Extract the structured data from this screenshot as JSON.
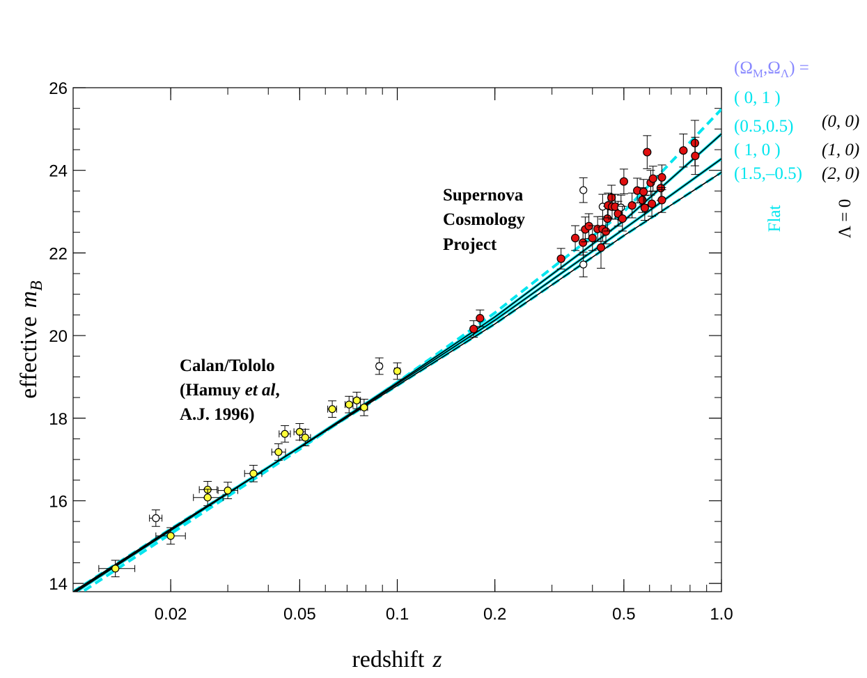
{
  "colors": {
    "cyan": "#00e5ee",
    "legend_title": "#8888ff",
    "point_yellow": "#ffff3a",
    "point_red": "#e01010",
    "black": "#000000"
  },
  "chart_data": {
    "type": "scatter",
    "title": "",
    "xlabel": "redshift",
    "xlabel_var": "z",
    "ylabel": "effective",
    "ylabel_var": "m",
    "ylabel_sub": "B",
    "xscale": "log",
    "xlim": [
      0.01,
      1.0
    ],
    "ylim": [
      13.8,
      26.0
    ],
    "x_ticks": [
      {
        "value": 0.02,
        "label": "0.02"
      },
      {
        "value": 0.05,
        "label": "0.05"
      },
      {
        "value": 0.1,
        "label": "0.1"
      },
      {
        "value": 0.2,
        "label": "0.2"
      },
      {
        "value": 0.5,
        "label": "0.5"
      },
      {
        "value": 1.0,
        "label": "1.0"
      }
    ],
    "y_ticks": [
      {
        "value": 14,
        "label": "14"
      },
      {
        "value": 16,
        "label": "16"
      },
      {
        "value": 18,
        "label": "18"
      },
      {
        "value": 20,
        "label": "20"
      },
      {
        "value": 22,
        "label": "22"
      },
      {
        "value": 24,
        "label": "24"
      },
      {
        "value": 26,
        "label": "26"
      }
    ],
    "annotations": [
      {
        "id": "calan",
        "lines": [
          [
            {
              "t": "Calan/Tololo",
              "i": false
            }
          ],
          [
            {
              "t": "(Hamuy ",
              "i": false
            },
            {
              "t": "et al",
              "i": true
            },
            {
              "t": ",",
              "i": false
            }
          ],
          [
            {
              "t": "A.J. 1996)",
              "i": false
            }
          ]
        ]
      },
      {
        "id": "scp",
        "lines": [
          [
            {
              "t": "Supernova",
              "i": false
            }
          ],
          [
            {
              "t": "Cosmology",
              "i": false
            }
          ],
          [
            {
              "t": "Project",
              "i": false
            }
          ]
        ]
      }
    ],
    "legend": {
      "title_omega": "Ω",
      "title_m": "M",
      "title_l": "Λ",
      "title_eq": "=",
      "flat_label": "Flat",
      "lambda_zero_label": "Λ = 0",
      "flat_entries": [
        "( 0,   1 )",
        "(0.5,0.5)",
        "( 1,    0 )",
        "(1.5,–0.5)"
      ],
      "lambda_zero_entries": [
        "(0, 0)",
        "(1, 0)",
        "(2, 0)"
      ]
    },
    "series": [
      {
        "name": "Flat (0, 1)",
        "style": "dashed",
        "color": "cyan",
        "x": [
          0.01,
          0.02,
          0.05,
          0.1,
          0.2,
          0.5,
          1.0
        ],
        "y": [
          13.65,
          15.2,
          17.25,
          18.87,
          20.55,
          23.0,
          25.48
        ]
      },
      {
        "name": "Flat (0.5, 0.5)",
        "style": "solid",
        "color": "cyan",
        "x": [
          0.01,
          0.02,
          0.05,
          0.1,
          0.2,
          0.5,
          1.0
        ],
        "y": [
          13.75,
          15.28,
          17.3,
          18.86,
          20.45,
          22.78,
          24.88
        ]
      },
      {
        "name": "Flat (1, 0)",
        "style": "solid",
        "color": "cyan",
        "x": [
          0.01,
          0.02,
          0.05,
          0.1,
          0.2,
          0.5,
          1.0
        ],
        "y": [
          13.78,
          15.3,
          17.3,
          18.83,
          20.37,
          22.58,
          24.28
        ]
      },
      {
        "name": "Flat (1.5, -0.5)",
        "style": "dashed",
        "color": "cyan",
        "x": [
          0.01,
          0.02,
          0.05,
          0.1,
          0.2,
          0.5,
          1.0
        ],
        "y": [
          13.8,
          15.32,
          17.29,
          18.79,
          20.28,
          22.42,
          23.95
        ]
      },
      {
        "name": "Lambda=0 (0, 0)",
        "style": "solid",
        "color": "black",
        "x": [
          0.01,
          0.02,
          0.05,
          0.1,
          0.2,
          0.5,
          1.0
        ],
        "y": [
          13.75,
          15.28,
          17.3,
          18.86,
          20.45,
          22.78,
          24.88
        ]
      },
      {
        "name": "Lambda=0 (1, 0)",
        "style": "solid",
        "color": "black",
        "x": [
          0.01,
          0.02,
          0.05,
          0.1,
          0.2,
          0.5,
          1.0
        ],
        "y": [
          13.78,
          15.3,
          17.3,
          18.83,
          20.37,
          22.58,
          24.28
        ]
      },
      {
        "name": "Lambda=0 (2, 0)",
        "style": "solid",
        "color": "black",
        "x": [
          0.01,
          0.02,
          0.05,
          0.1,
          0.2,
          0.5,
          1.0
        ],
        "y": [
          13.8,
          15.32,
          17.29,
          18.79,
          20.28,
          22.42,
          23.95
        ]
      }
    ],
    "points": [
      {
        "group": "calan",
        "fill": "yellow",
        "x": 0.0135,
        "y": 14.36,
        "xerr": [
          0.012,
          0.0155
        ],
        "yerr": 0.2
      },
      {
        "group": "calan",
        "fill": "open",
        "x": 0.018,
        "y": 15.58,
        "xerr": [
          0.0172,
          0.0188
        ],
        "yerr": 0.2
      },
      {
        "group": "calan",
        "fill": "yellow",
        "x": 0.02,
        "y": 15.15,
        "xerr": [
          0.018,
          0.0222
        ],
        "yerr": 0.2
      },
      {
        "group": "calan",
        "fill": "yellow",
        "x": 0.026,
        "y": 16.27,
        "xerr": [
          0.0245,
          0.0278
        ],
        "yerr": 0.2
      },
      {
        "group": "calan",
        "fill": "yellow",
        "x": 0.026,
        "y": 16.08,
        "xerr": [
          0.0235,
          0.029
        ],
        "yerr": 0.2
      },
      {
        "group": "calan",
        "fill": "yellow",
        "x": 0.03,
        "y": 16.25,
        "xerr": [
          0.028,
          0.0322
        ],
        "yerr": 0.2
      },
      {
        "group": "calan",
        "fill": "yellow",
        "x": 0.036,
        "y": 16.66,
        "xerr": [
          0.0338,
          0.0382
        ],
        "yerr": 0.2
      },
      {
        "group": "calan",
        "fill": "yellow",
        "x": 0.043,
        "y": 17.18,
        "xerr": [
          0.041,
          0.0452
        ],
        "yerr": 0.2
      },
      {
        "group": "calan",
        "fill": "yellow",
        "x": 0.045,
        "y": 17.62,
        "xerr": [
          0.0432,
          0.0468
        ],
        "yerr": 0.2
      },
      {
        "group": "calan",
        "fill": "yellow",
        "x": 0.05,
        "y": 17.67,
        "xerr": [
          0.048,
          0.052
        ],
        "yerr": 0.2
      },
      {
        "group": "calan",
        "fill": "yellow",
        "x": 0.052,
        "y": 17.53,
        "xerr": [
          0.05,
          0.054
        ],
        "yerr": 0.2
      },
      {
        "group": "calan",
        "fill": "yellow",
        "x": 0.063,
        "y": 18.22,
        "xerr": [
          0.061,
          0.065
        ],
        "yerr": 0.2
      },
      {
        "group": "calan",
        "fill": "yellow",
        "x": 0.071,
        "y": 18.33,
        "xerr": [
          0.069,
          0.073
        ],
        "yerr": 0.2
      },
      {
        "group": "calan",
        "fill": "yellow",
        "x": 0.075,
        "y": 18.43,
        "xerr": [
          0.073,
          0.077
        ],
        "yerr": 0.2
      },
      {
        "group": "calan",
        "fill": "yellow",
        "x": 0.079,
        "y": 18.26,
        "xerr": [
          0.077,
          0.081
        ],
        "yerr": 0.2
      },
      {
        "group": "calan",
        "fill": "open",
        "x": 0.088,
        "y": 19.26,
        "xerr": [
          0.0865,
          0.0895
        ],
        "yerr": 0.2
      },
      {
        "group": "calan",
        "fill": "yellow",
        "x": 0.1,
        "y": 19.14,
        "xerr": [
          0.098,
          0.102
        ],
        "yerr": 0.2
      },
      {
        "group": "scp",
        "fill": "red",
        "x": 0.172,
        "y": 20.16,
        "yerr": 0.2
      },
      {
        "group": "scp",
        "fill": "red",
        "x": 0.18,
        "y": 20.42,
        "yerr": 0.2
      },
      {
        "group": "scp",
        "fill": "red",
        "x": 0.32,
        "y": 21.86,
        "yerr": 0.25
      },
      {
        "group": "scp",
        "fill": "red",
        "x": 0.354,
        "y": 22.36,
        "yerr": 0.3
      },
      {
        "group": "scp",
        "fill": "open",
        "x": 0.375,
        "y": 23.52,
        "yerr": 0.3
      },
      {
        "group": "scp",
        "fill": "open",
        "x": 0.375,
        "y": 21.72,
        "yerr": 0.3
      },
      {
        "group": "scp",
        "fill": "red",
        "x": 0.374,
        "y": 22.25,
        "yerr": 0.3
      },
      {
        "group": "scp",
        "fill": "red",
        "x": 0.38,
        "y": 22.57,
        "yerr": 0.3
      },
      {
        "group": "scp",
        "fill": "red",
        "x": 0.39,
        "y": 22.65,
        "yerr": 0.3
      },
      {
        "group": "scp",
        "fill": "red",
        "x": 0.4,
        "y": 22.36,
        "yerr": 0.3
      },
      {
        "group": "scp",
        "fill": "red",
        "x": 0.415,
        "y": 22.58,
        "yerr": 0.3
      },
      {
        "group": "scp",
        "fill": "red",
        "x": 0.425,
        "y": 22.13,
        "yerr": 0.5
      },
      {
        "group": "scp",
        "fill": "red",
        "x": 0.43,
        "y": 22.58,
        "yerr": 0.3
      },
      {
        "group": "scp",
        "fill": "open",
        "x": 0.43,
        "y": 23.12,
        "yerr": 0.3
      },
      {
        "group": "scp",
        "fill": "red",
        "x": 0.44,
        "y": 22.52,
        "yerr": 0.3
      },
      {
        "group": "scp",
        "fill": "red",
        "x": 0.445,
        "y": 22.83,
        "yerr": 0.3
      },
      {
        "group": "scp",
        "fill": "red",
        "x": 0.447,
        "y": 23.15,
        "yerr": 0.3
      },
      {
        "group": "scp",
        "fill": "red",
        "x": 0.458,
        "y": 23.34,
        "yerr": 0.3
      },
      {
        "group": "scp",
        "fill": "red",
        "x": 0.46,
        "y": 23.12,
        "yerr": 0.3
      },
      {
        "group": "scp",
        "fill": "red",
        "x": 0.47,
        "y": 23.12,
        "yerr": 0.3
      },
      {
        "group": "scp",
        "fill": "red",
        "x": 0.48,
        "y": 22.95,
        "yerr": 0.3
      },
      {
        "group": "scp",
        "fill": "open",
        "x": 0.49,
        "y": 23.1,
        "yerr": 0.3
      },
      {
        "group": "scp",
        "fill": "red",
        "x": 0.495,
        "y": 22.83,
        "yerr": 0.3
      },
      {
        "group": "scp",
        "fill": "red",
        "x": 0.5,
        "y": 23.73,
        "yerr": 0.3
      },
      {
        "group": "scp",
        "fill": "red",
        "x": 0.53,
        "y": 23.15,
        "yerr": 0.3
      },
      {
        "group": "scp",
        "fill": "red",
        "x": 0.55,
        "y": 23.51,
        "yerr": 0.3
      },
      {
        "group": "scp",
        "fill": "red",
        "x": 0.57,
        "y": 23.28,
        "yerr": 0.3
      },
      {
        "group": "scp",
        "fill": "red",
        "x": 0.575,
        "y": 23.48,
        "yerr": 0.3
      },
      {
        "group": "scp",
        "fill": "red",
        "x": 0.58,
        "y": 23.09,
        "yerr": 0.3
      },
      {
        "group": "scp",
        "fill": "red",
        "x": 0.59,
        "y": 24.44,
        "yerr": 0.4
      },
      {
        "group": "scp",
        "fill": "red",
        "x": 0.605,
        "y": 23.7,
        "yerr": 0.3
      },
      {
        "group": "scp",
        "fill": "red",
        "x": 0.61,
        "y": 23.19,
        "yerr": 0.3
      },
      {
        "group": "scp",
        "fill": "red",
        "x": 0.615,
        "y": 23.8,
        "yerr": 0.3
      },
      {
        "group": "scp",
        "fill": "red",
        "x": 0.65,
        "y": 23.57,
        "yerr": 0.3
      },
      {
        "group": "scp",
        "fill": "red",
        "x": 0.655,
        "y": 23.28,
        "yerr": 0.3
      },
      {
        "group": "scp",
        "fill": "red",
        "x": 0.655,
        "y": 23.83,
        "yerr": 0.3
      },
      {
        "group": "scp",
        "fill": "red",
        "x": 0.763,
        "y": 24.48,
        "yerr": 0.4
      },
      {
        "group": "scp",
        "fill": "red",
        "x": 0.828,
        "y": 24.66,
        "yerr": 0.55
      },
      {
        "group": "scp",
        "fill": "red",
        "x": 0.83,
        "y": 24.35,
        "yerr": 0.45
      }
    ]
  }
}
